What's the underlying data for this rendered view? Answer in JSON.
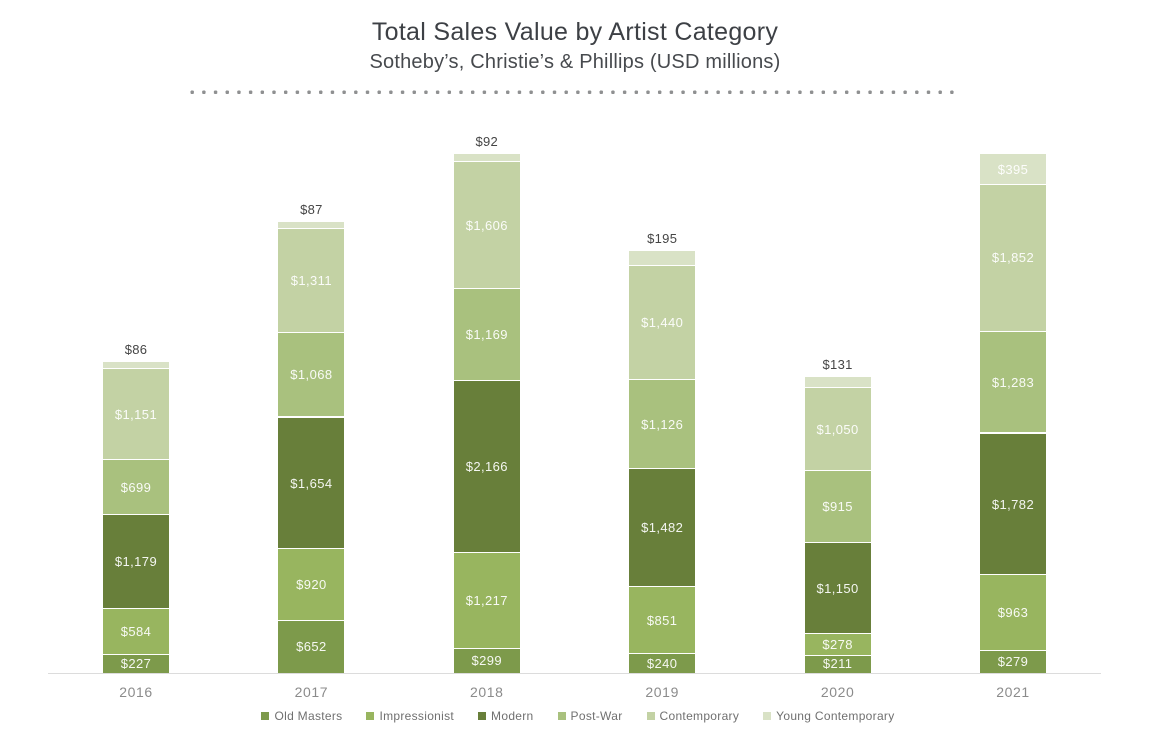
{
  "header": {
    "title": "Total Sales Value by Artist Category",
    "subtitle": "Sotheby’s, Christie’s & Phillips (USD millions)"
  },
  "chart_data": {
    "type": "bar",
    "stacked": true,
    "title": "Total Sales Value by Artist Category",
    "subtitle": "Sotheby’s, Christie’s & Phillips (USD millions)",
    "units": "USD millions",
    "value_prefix": "$",
    "grid": false,
    "legend_position": "bottom",
    "categories": [
      "2016",
      "2017",
      "2018",
      "2019",
      "2020",
      "2021"
    ],
    "series": [
      {
        "name": "Old Masters",
        "color": "#7d9a4b",
        "values": [
          227,
          652,
          299,
          240,
          211,
          279
        ]
      },
      {
        "name": "Impressionist",
        "color": "#98b55f",
        "values": [
          584,
          920,
          1217,
          851,
          278,
          963
        ]
      },
      {
        "name": "Modern",
        "color": "#687f3a",
        "values": [
          1179,
          1654,
          2166,
          1482,
          1150,
          1782
        ]
      },
      {
        "name": "Post-War",
        "color": "#a9c17e",
        "values": [
          699,
          1068,
          1169,
          1126,
          915,
          1283
        ]
      },
      {
        "name": "Contemporary",
        "color": "#c3d2a4",
        "values": [
          1151,
          1311,
          1606,
          1440,
          1050,
          1852
        ]
      },
      {
        "name": "Young Contemporary",
        "color": "#d9e2c6",
        "values": [
          86,
          87,
          92,
          195,
          131,
          395
        ]
      }
    ],
    "totals": [
      3926,
      5692,
      6549,
      5334,
      3735,
      6554
    ],
    "outside_labels": [
      "$86",
      "$87",
      "$92",
      "$195",
      "$131"
    ]
  }
}
